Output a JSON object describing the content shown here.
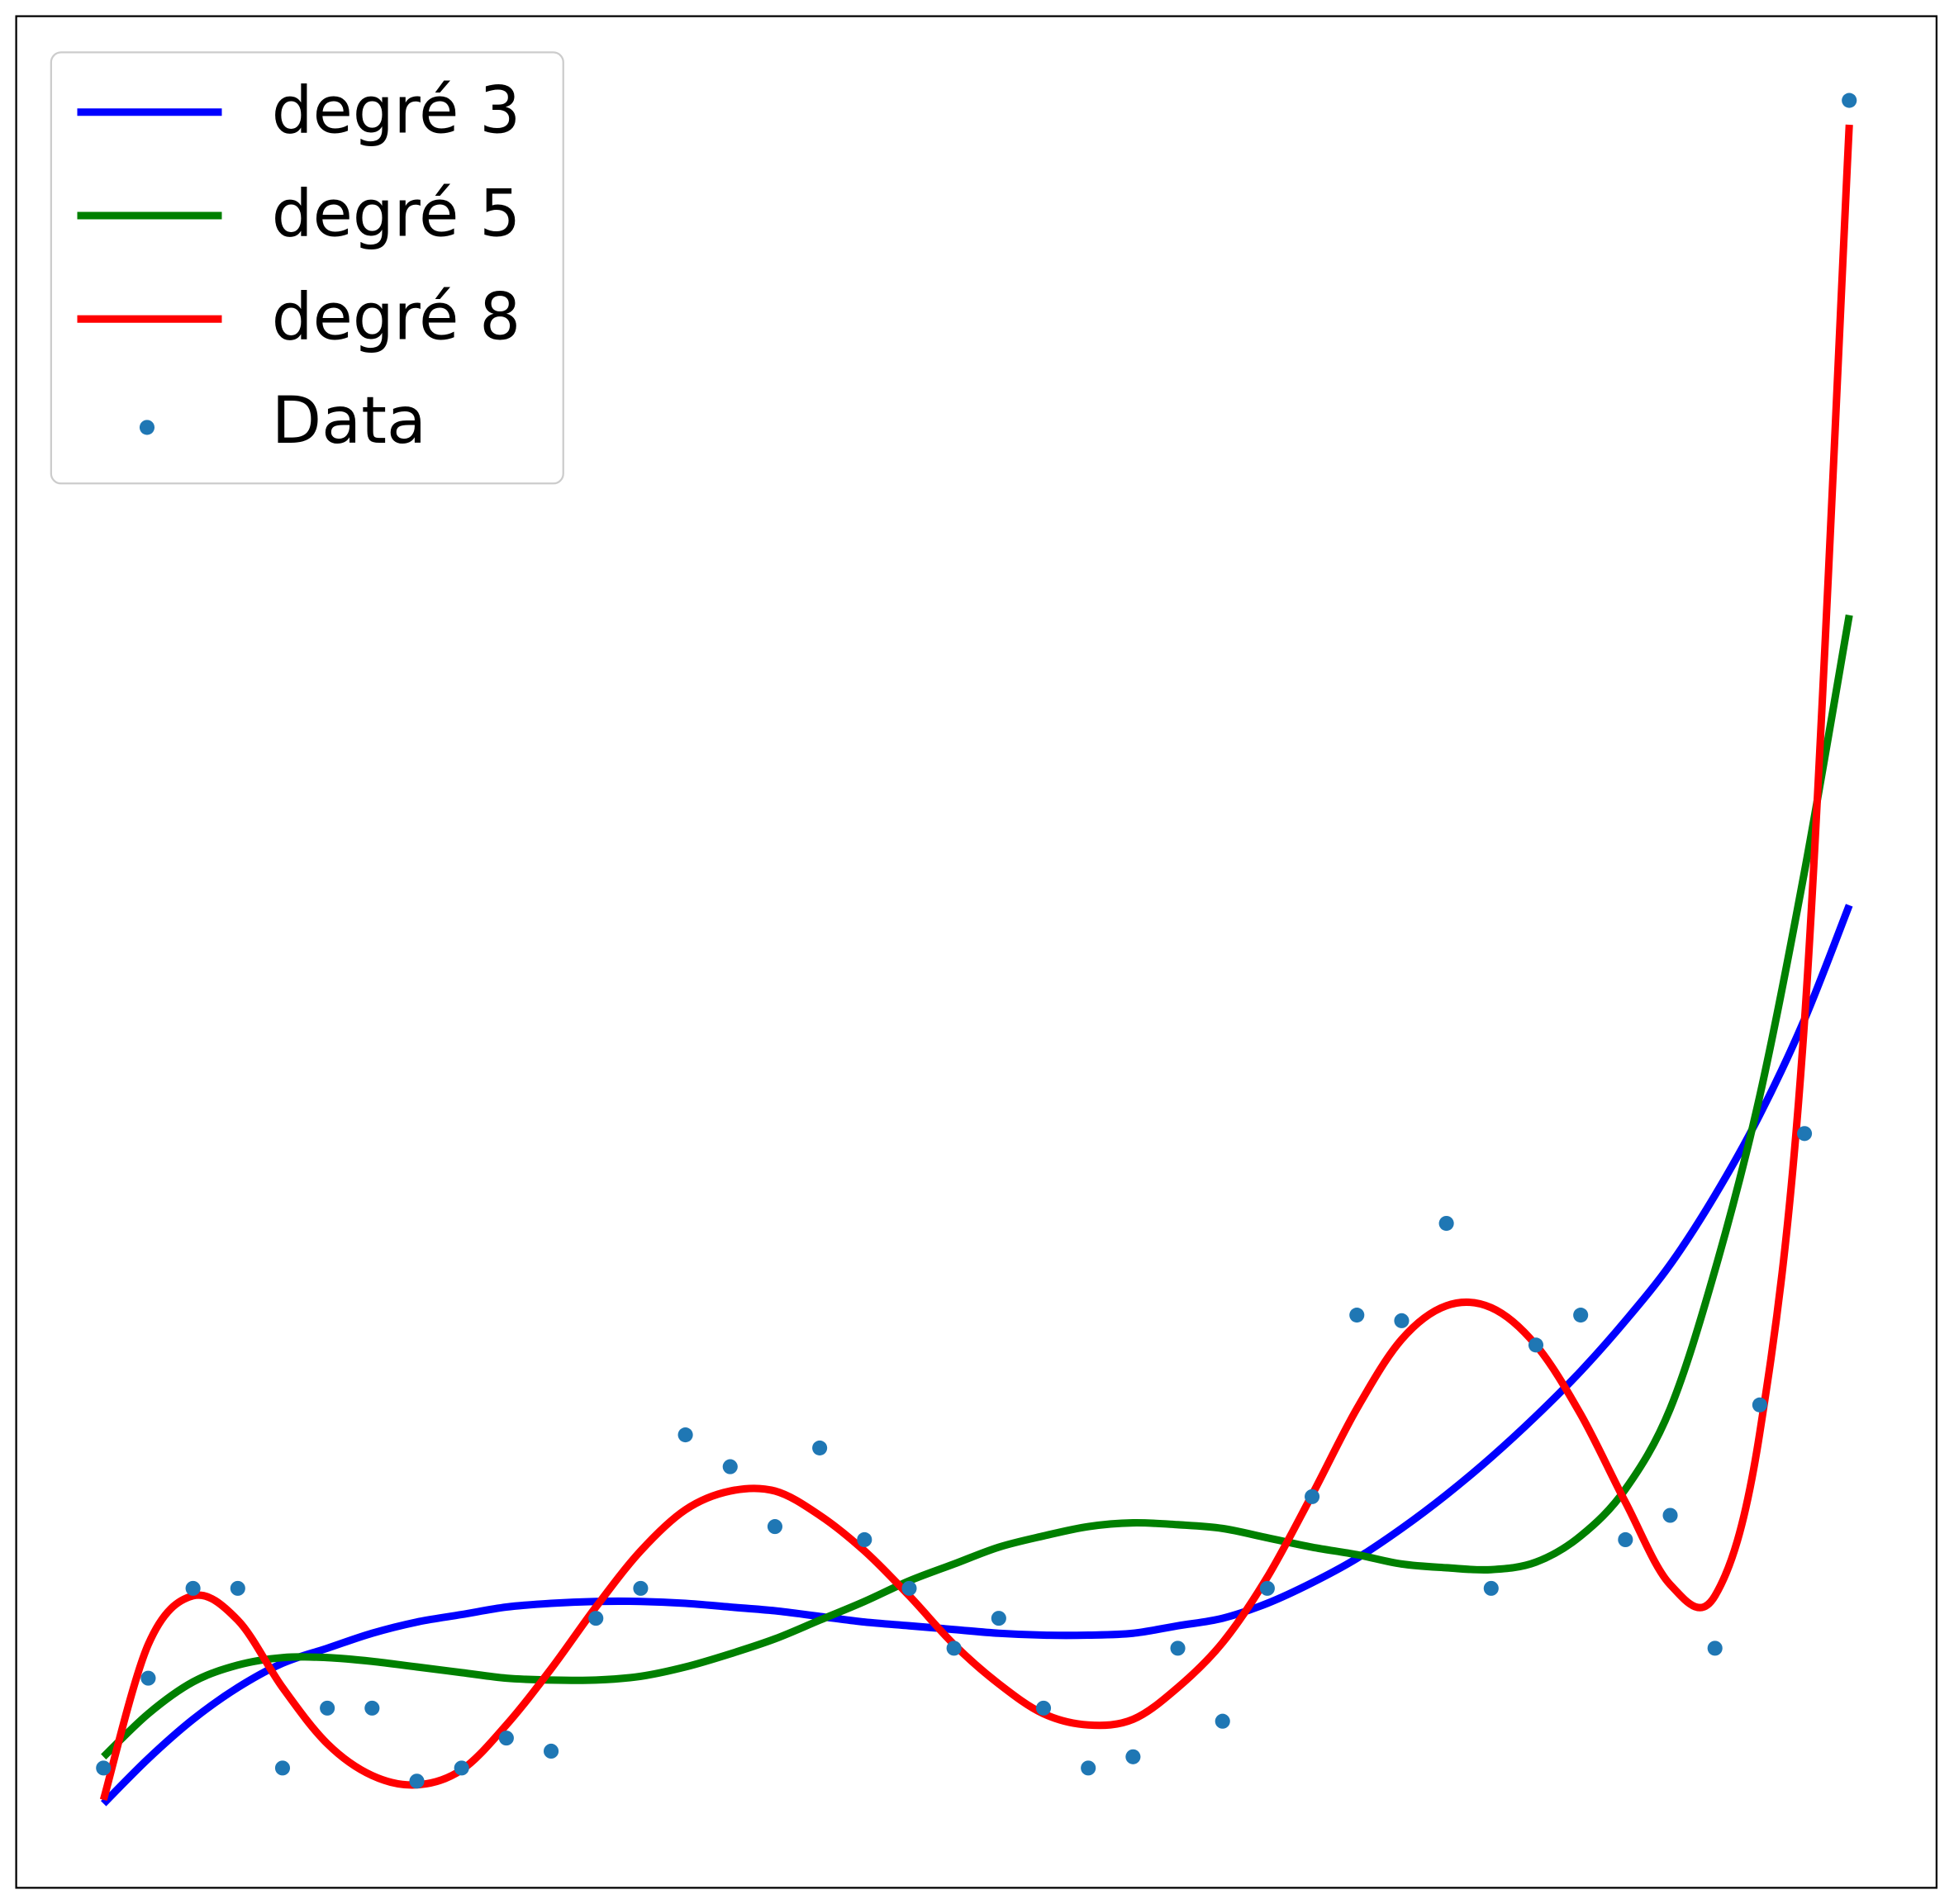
{
  "chart_data": {
    "type": "line",
    "x": [
      0,
      1,
      2,
      3,
      4,
      5,
      6,
      7,
      8,
      9,
      10,
      11,
      12,
      13,
      14,
      15,
      16,
      17,
      18,
      19,
      20,
      21,
      22,
      23,
      24,
      25,
      26,
      27,
      28,
      29,
      30,
      31,
      32,
      33,
      34,
      35,
      36,
      37,
      38,
      39
    ],
    "xlim": [
      -1.95,
      40.95
    ],
    "ylim": [
      0,
      100
    ],
    "legend": "upper left",
    "series": [
      {
        "name": "degré 3",
        "type": "line",
        "color": "#0000ff",
        "values": [
          4.5,
          6.9,
          9.0,
          10.7,
          12.0,
          12.8,
          13.6,
          14.2,
          14.6,
          15.0,
          15.2,
          15.3,
          15.3,
          15.2,
          15.0,
          14.8,
          14.5,
          14.2,
          14.0,
          13.8,
          13.6,
          13.5,
          13.5,
          13.6,
          14.0,
          14.4,
          15.2,
          16.3,
          17.6,
          19.2,
          21.0,
          23.0,
          25.2,
          27.6,
          30.3,
          33.3,
          37.0,
          41.3,
          46.4,
          52.5
        ]
      },
      {
        "name": "degré 5",
        "type": "line",
        "color": "#008000",
        "values": [
          7.0,
          9.3,
          11.0,
          11.9,
          12.3,
          12.3,
          12.1,
          11.8,
          11.5,
          11.2,
          11.1,
          11.1,
          11.3,
          11.8,
          12.5,
          13.3,
          14.3,
          15.3,
          16.4,
          17.3,
          18.2,
          18.8,
          19.3,
          19.5,
          19.4,
          19.2,
          18.7,
          18.2,
          17.8,
          17.3,
          17.1,
          17.0,
          17.4,
          18.8,
          21.3,
          25.6,
          33.0,
          42.3,
          54.3,
          68.0
        ]
      },
      {
        "name": "degré 8",
        "type": "line",
        "color": "#ff0000",
        "values": [
          4.7,
          13.0,
          15.6,
          14.3,
          10.7,
          7.7,
          6.0,
          5.5,
          6.3,
          8.7,
          11.7,
          15.0,
          18.0,
          20.2,
          21.2,
          21.2,
          19.9,
          18.0,
          15.6,
          13.0,
          10.9,
          9.3,
          8.7,
          9.0,
          10.7,
          13.1,
          16.6,
          21.0,
          25.6,
          29.3,
          31.1,
          31.0,
          29.0,
          25.3,
          20.6,
          16.2,
          15.6,
          24.3,
          46.3,
          94.2
        ]
      },
      {
        "name": "Data",
        "type": "scatter",
        "color": "#1f77b4",
        "values": [
          6.4,
          11.2,
          16.0,
          16.0,
          6.4,
          9.6,
          9.6,
          5.7,
          6.4,
          8.0,
          7.3,
          14.4,
          16.0,
          24.2,
          22.5,
          19.3,
          23.5,
          18.6,
          16.0,
          12.8,
          14.4,
          9.6,
          6.4,
          7.0,
          12.8,
          8.9,
          16.0,
          20.9,
          30.6,
          30.3,
          35.5,
          16.0,
          29.0,
          30.6,
          18.6,
          19.9,
          12.8,
          25.8,
          40.3,
          95.5
        ]
      }
    ]
  }
}
